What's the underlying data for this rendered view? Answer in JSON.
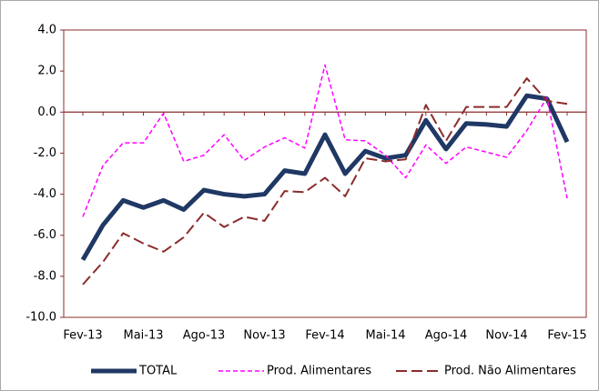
{
  "chart_data": {
    "type": "line",
    "categories": [
      "Fev-13",
      null,
      null,
      "Mai-13",
      null,
      null,
      "Ago-13",
      null,
      null,
      "Nov-13",
      null,
      null,
      "Fev-14",
      null,
      null,
      "Mai-14",
      null,
      null,
      "Ago-14",
      null,
      null,
      "Nov-14",
      null,
      null,
      "Fev-15"
    ],
    "series": [
      {
        "name": "TOTAL",
        "color": "#1f3864",
        "dash": "solid",
        "width": 5,
        "values": [
          -7.2,
          -5.5,
          -4.3,
          -4.65,
          -4.3,
          -4.75,
          -3.8,
          -4.0,
          -4.1,
          -4.0,
          -2.85,
          -3.0,
          -1.1,
          -3.0,
          -1.9,
          -2.25,
          -2.1,
          -0.4,
          -1.8,
          -0.55,
          -0.6,
          -0.7,
          0.8,
          0.65,
          -1.45
        ]
      },
      {
        "name": "Prod. Alimentares",
        "color": "#ff00ff",
        "dash": "short",
        "width": 1.5,
        "values": [
          -5.1,
          -2.6,
          -1.5,
          -1.5,
          -0.05,
          -2.4,
          -2.1,
          -1.1,
          -2.35,
          -1.7,
          -1.25,
          -1.75,
          2.3,
          -1.35,
          -1.4,
          -2.1,
          -3.2,
          -1.6,
          -2.5,
          -1.7,
          -1.95,
          -2.2,
          -0.9,
          0.7,
          -4.2
        ]
      },
      {
        "name": "Prod. Não Alimentares",
        "color": "#8b2c2c",
        "dash": "long",
        "width": 2,
        "values": [
          -8.4,
          -7.3,
          -5.9,
          -6.4,
          -6.8,
          -6.1,
          -4.9,
          -5.6,
          -5.1,
          -5.3,
          -3.85,
          -3.9,
          -3.2,
          -4.1,
          -2.25,
          -2.4,
          -2.3,
          0.35,
          -1.4,
          0.25,
          0.25,
          0.25,
          1.65,
          0.55,
          0.4
        ]
      }
    ],
    "ylim": [
      -10,
      4
    ],
    "yticks": [
      {
        "value": -10,
        "label": "-10.0"
      },
      {
        "value": -8,
        "label": "-8.0"
      },
      {
        "value": -6,
        "label": "-6.0"
      },
      {
        "value": -4,
        "label": "-4.0"
      },
      {
        "value": -2,
        "label": "-2.0"
      },
      {
        "value": 0,
        "label": "0.0"
      },
      {
        "value": 2,
        "label": "2.0"
      },
      {
        "value": 4,
        "label": "4.0"
      }
    ],
    "grid": false,
    "legend": "bottom"
  }
}
